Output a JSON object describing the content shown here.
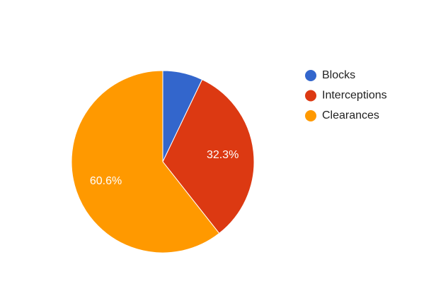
{
  "chart_data": {
    "type": "pie",
    "categories": [
      "Blocks",
      "Interceptions",
      "Clearances"
    ],
    "values": [
      7.1,
      32.3,
      60.6
    ],
    "value_labels": [
      null,
      "32.3%",
      "60.6%"
    ],
    "colors": [
      "#3366cc",
      "#dc3912",
      "#ff9900"
    ],
    "legend": "right"
  }
}
